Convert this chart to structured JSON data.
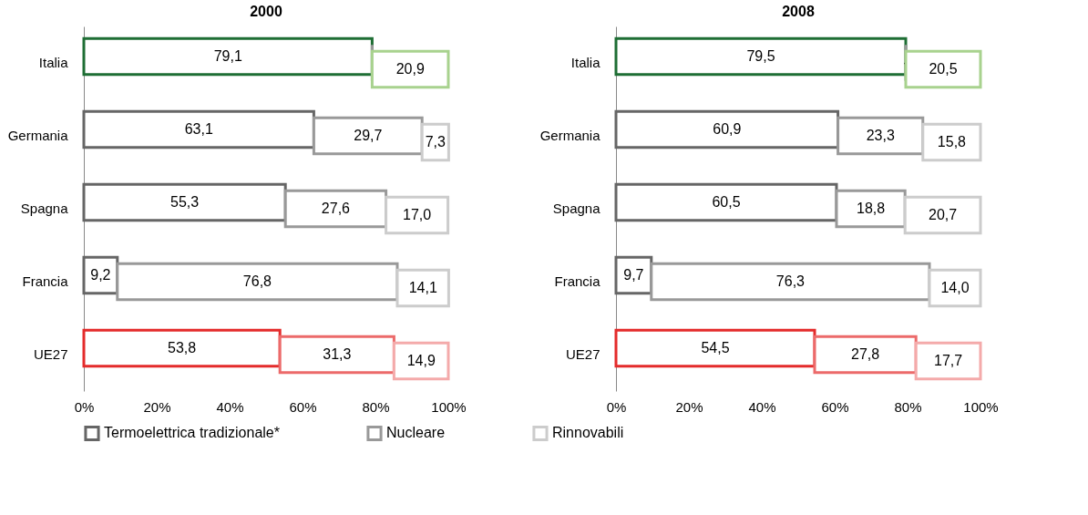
{
  "chart_data": [
    {
      "type": "bar",
      "title": "2000",
      "orientation": "horizontal",
      "stacked": true,
      "legend": "bottom",
      "categories": [
        "Italia",
        "Germania",
        "Spagna",
        "Francia",
        "UE27"
      ],
      "xlim": [
        0,
        100
      ],
      "xticks": [
        {
          "value": 0,
          "label": "0%"
        },
        {
          "value": 20,
          "label": "20%"
        },
        {
          "value": 40,
          "label": "40%"
        },
        {
          "value": 60,
          "label": "60%"
        },
        {
          "value": 80,
          "label": "80%"
        },
        {
          "value": 100,
          "label": "100%"
        }
      ],
      "grid": false,
      "series": [
        {
          "name": "Termoelettrica tradizionale*",
          "color": "#666666",
          "values": [
            79.1,
            63.1,
            55.3,
            9.2,
            53.8
          ],
          "colors": [
            "#1e6e34",
            "#666666",
            "#666666",
            "#666666",
            "#e42b2b"
          ],
          "value_labels": [
            "79,1",
            "63,1",
            "55,3",
            "9,2",
            "53,8"
          ]
        },
        {
          "name": "Nucleare",
          "color": "#999999",
          "values": [
            0,
            29.7,
            27.6,
            76.8,
            31.3
          ],
          "colors": [
            "#999999",
            "#999999",
            "#999999",
            "#999999",
            "#ec6a6a"
          ],
          "value_labels": [
            null,
            "29,7",
            "27,6",
            "76,8",
            "31,3"
          ]
        },
        {
          "name": "Rinnovabili",
          "color": "#cccccc",
          "values": [
            20.9,
            7.3,
            17.0,
            14.1,
            14.9
          ],
          "colors": [
            "#a8d28e",
            "#cccccc",
            "#cccccc",
            "#cccccc",
            "#f4aaaa"
          ],
          "value_labels": [
            "20,9",
            "7,3",
            "17,0",
            "14,1",
            "14,9"
          ]
        }
      ]
    },
    {
      "type": "bar",
      "title": "2008",
      "orientation": "horizontal",
      "stacked": true,
      "legend": "bottom",
      "categories": [
        "Italia",
        "Germania",
        "Spagna",
        "Francia",
        "UE27"
      ],
      "xlim": [
        0,
        100
      ],
      "xticks": [
        {
          "value": 0,
          "label": "0%"
        },
        {
          "value": 20,
          "label": "20%"
        },
        {
          "value": 40,
          "label": "40%"
        },
        {
          "value": 60,
          "label": "60%"
        },
        {
          "value": 80,
          "label": "80%"
        },
        {
          "value": 100,
          "label": "100%"
        }
      ],
      "grid": false,
      "series": [
        {
          "name": "Termoelettrica tradizionale*",
          "color": "#666666",
          "values": [
            79.5,
            60.9,
            60.5,
            9.7,
            54.5
          ],
          "colors": [
            "#1e6e34",
            "#666666",
            "#666666",
            "#666666",
            "#e42b2b"
          ],
          "value_labels": [
            "79,5",
            "60,9",
            "60,5",
            "9,7",
            "54,5"
          ]
        },
        {
          "name": "Nucleare",
          "color": "#999999",
          "values": [
            0,
            23.3,
            18.8,
            76.3,
            27.8
          ],
          "colors": [
            "#999999",
            "#999999",
            "#999999",
            "#999999",
            "#ec6a6a"
          ],
          "value_labels": [
            "-",
            "23,3",
            "18,8",
            "76,3",
            "27,8"
          ]
        },
        {
          "name": "Rinnovabili",
          "color": "#cccccc",
          "values": [
            20.5,
            15.8,
            20.7,
            14.0,
            17.7
          ],
          "colors": [
            "#a8d28e",
            "#cccccc",
            "#cccccc",
            "#cccccc",
            "#f4aaaa"
          ],
          "value_labels": [
            "20,5",
            "15,8",
            "20,7",
            "14,0",
            "17,7"
          ]
        }
      ]
    }
  ]
}
